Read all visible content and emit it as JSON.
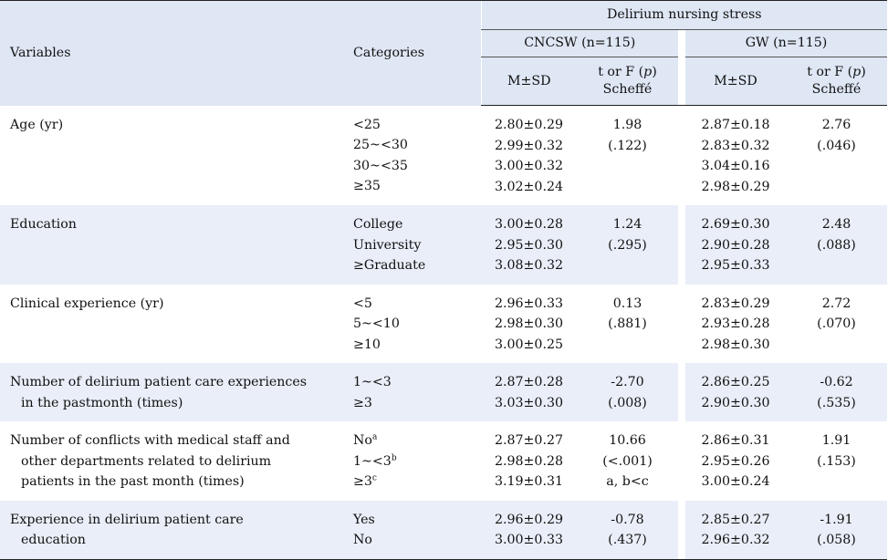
{
  "header": {
    "col_variables": "Variables",
    "col_categories": "Categories",
    "group_title": "Delirium nursing stress",
    "group_a": "CNCSW (n=115)",
    "group_b": "GW (n=115)",
    "msd": "M±SD",
    "test_line1": "t or F (",
    "test_p": "p",
    "test_line1_end": ")",
    "test_line2": "Scheffé"
  },
  "rows": [
    {
      "variable": [
        "Age (yr)"
      ],
      "categories": [
        "<25",
        "25~<30",
        "30~<35",
        "≥35"
      ],
      "a_msd": [
        "2.80±0.29",
        "2.99±0.32",
        "3.00±0.32",
        "3.02±0.24"
      ],
      "a_test": [
        "1.98",
        "(.122)"
      ],
      "b_msd": [
        "2.87±0.18",
        "2.83±0.32",
        "3.04±0.16",
        "2.98±0.29"
      ],
      "b_test": [
        "2.76",
        "(.046)"
      ]
    },
    {
      "variable": [
        "Education"
      ],
      "categories": [
        "College",
        "University",
        "≥Graduate"
      ],
      "a_msd": [
        "3.00±0.28",
        "2.95±0.30",
        "3.08±0.32"
      ],
      "a_test": [
        "1.24",
        "(.295)"
      ],
      "b_msd": [
        "2.69±0.30",
        "2.90±0.28",
        "2.95±0.33"
      ],
      "b_test": [
        "2.48",
        "(.088)"
      ]
    },
    {
      "variable": [
        "Clinical experience (yr)"
      ],
      "categories": [
        "<5",
        "5~<10",
        "≥10"
      ],
      "a_msd": [
        "2.96±0.33",
        "2.98±0.30",
        "3.00±0.25"
      ],
      "a_test": [
        "0.13",
        "(.881)"
      ],
      "b_msd": [
        "2.83±0.29",
        "2.93±0.28",
        "2.98±0.30"
      ],
      "b_test": [
        "2.72",
        "(.070)"
      ]
    },
    {
      "variable": [
        "Number of delirium patient care experiences",
        "in the pastmonth (times)"
      ],
      "categories": [
        "1~<3",
        "≥3"
      ],
      "a_msd": [
        "2.87±0.28",
        "3.03±0.30"
      ],
      "a_test": [
        "-2.70",
        "(.008)"
      ],
      "b_msd": [
        "2.86±0.25",
        "2.90±0.30"
      ],
      "b_test": [
        "-0.62",
        "(.535)"
      ]
    },
    {
      "variable": [
        "Number of conflicts with medical staff and",
        "other departments related to delirium",
        "patients in the past month (times)"
      ],
      "categories": [
        "No",
        "1~<3",
        "≥3"
      ],
      "category_sups": [
        "a",
        "b",
        "c"
      ],
      "a_msd": [
        "2.87±0.27",
        "2.98±0.28",
        "3.19±0.31"
      ],
      "a_test": [
        "10.66",
        "(<.001)",
        "a, b<c"
      ],
      "b_msd": [
        "2.86±0.31",
        "2.95±0.26",
        "3.00±0.24"
      ],
      "b_test": [
        "1.91",
        "(.153)"
      ]
    },
    {
      "variable": [
        "Experience in delirium patient care",
        "education"
      ],
      "categories": [
        "Yes",
        "No"
      ],
      "a_msd": [
        "2.96±0.29",
        "3.00±0.33"
      ],
      "a_test": [
        "-0.78",
        "(.437)"
      ],
      "b_msd": [
        "2.85±0.27",
        "2.96±0.32"
      ],
      "b_test": [
        "-1.91",
        "(.058)"
      ]
    }
  ]
}
